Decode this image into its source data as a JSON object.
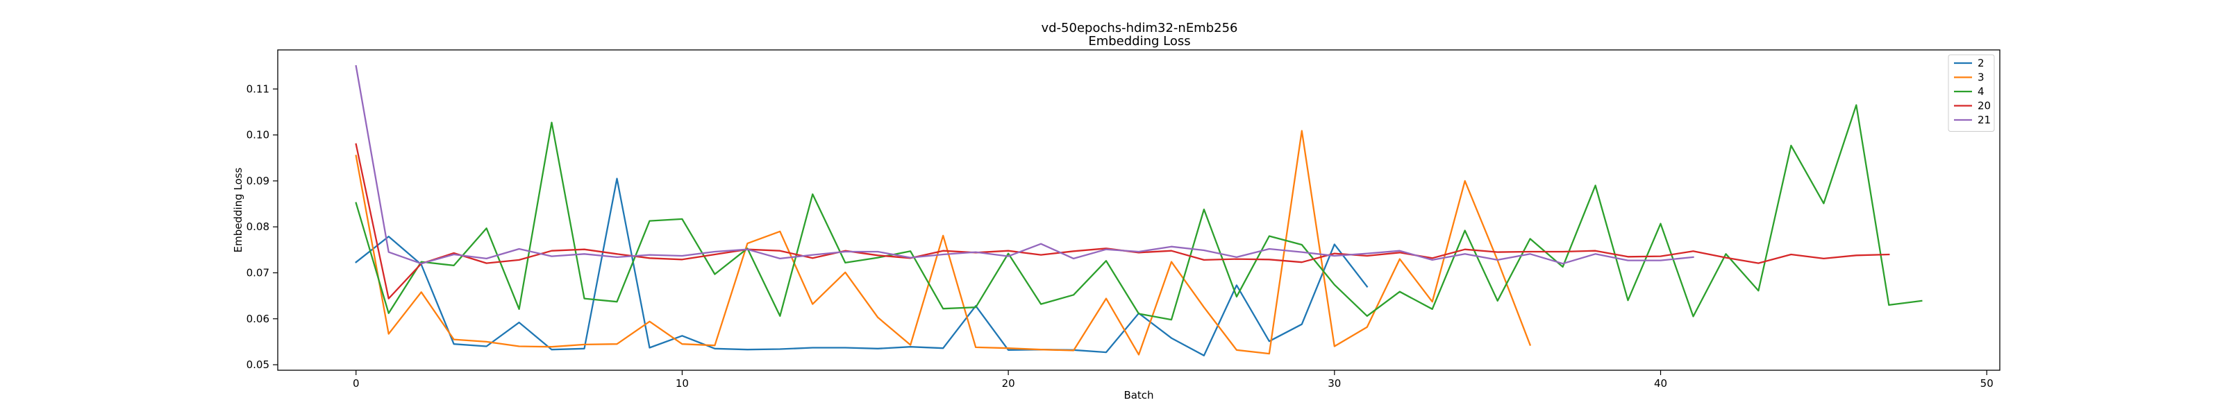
{
  "chart_data": {
    "type": "line",
    "title": "vd-50epochs-hdim32-nEmb256",
    "subtitle": "Embedding Loss",
    "xlabel": "Batch",
    "ylabel": "Embedding Loss",
    "xlim": [
      -2.4,
      50.4
    ],
    "ylim": [
      0.0488,
      0.1185
    ],
    "xticks": [
      0,
      10,
      20,
      30,
      40,
      50
    ],
    "yticks": [
      0.05,
      0.06,
      0.07,
      0.08,
      0.09,
      0.1,
      0.11
    ],
    "ytick_labels": [
      "0.05",
      "0.06",
      "0.07",
      "0.08",
      "0.09",
      "0.10",
      "0.11"
    ],
    "grid": false,
    "legend_position": "top-right",
    "series": [
      {
        "name": "2",
        "color": "#1f77b4",
        "x": [
          0,
          1,
          2,
          3,
          4,
          5,
          6,
          7,
          8,
          9,
          10,
          11,
          12,
          13,
          14,
          15,
          16,
          17,
          18,
          19,
          20,
          21,
          22,
          23,
          24,
          25,
          26,
          27,
          28,
          29,
          30,
          31
        ],
        "values": [
          0.0723,
          0.0779,
          0.0718,
          0.0545,
          0.054,
          0.0592,
          0.0533,
          0.0535,
          0.0905,
          0.0537,
          0.0563,
          0.0535,
          0.0533,
          0.0534,
          0.0537,
          0.0537,
          0.0535,
          0.0539,
          0.0536,
          0.0628,
          0.0532,
          0.0533,
          0.0532,
          0.0527,
          0.0612,
          0.0558,
          0.052,
          0.0673,
          0.0551,
          0.0588,
          0.0762,
          0.067
        ]
      },
      {
        "name": "3",
        "color": "#ff7f0e",
        "x": [
          0,
          1,
          2,
          3,
          4,
          5,
          6,
          7,
          8,
          9,
          10,
          11,
          12,
          13,
          14,
          15,
          16,
          17,
          18,
          19,
          20,
          21,
          22,
          23,
          24,
          25,
          26,
          27,
          28,
          29,
          30,
          31,
          32,
          33,
          34,
          35,
          36
        ],
        "values": [
          0.0955,
          0.0567,
          0.0658,
          0.0555,
          0.055,
          0.054,
          0.0539,
          0.0544,
          0.0545,
          0.0594,
          0.0545,
          0.0542,
          0.0764,
          0.079,
          0.0632,
          0.0701,
          0.0603,
          0.0543,
          0.0781,
          0.0538,
          0.0536,
          0.0533,
          0.0531,
          0.0644,
          0.0522,
          0.0724,
          0.0625,
          0.0532,
          0.0524,
          0.1009,
          0.054,
          0.0582,
          0.073,
          0.0637,
          0.09,
          0.0727,
          0.0543
        ]
      },
      {
        "name": "4",
        "color": "#2ca02c",
        "x": [
          0,
          1,
          2,
          3,
          4,
          5,
          6,
          7,
          8,
          9,
          10,
          11,
          12,
          13,
          14,
          15,
          16,
          17,
          18,
          19,
          20,
          21,
          22,
          23,
          24,
          25,
          26,
          27,
          28,
          29,
          30,
          31,
          32,
          33,
          34,
          35,
          36,
          37,
          38,
          39,
          40,
          41,
          42,
          43,
          44,
          45,
          46,
          47,
          48
        ],
        "values": [
          0.0852,
          0.0612,
          0.0724,
          0.0716,
          0.0797,
          0.0621,
          0.1027,
          0.0644,
          0.0637,
          0.0813,
          0.0817,
          0.0697,
          0.0753,
          0.0606,
          0.0871,
          0.0722,
          0.0733,
          0.0747,
          0.0622,
          0.0625,
          0.0742,
          0.0632,
          0.0652,
          0.0726,
          0.0611,
          0.0598,
          0.0838,
          0.0648,
          0.078,
          0.0761,
          0.0674,
          0.0606,
          0.0659,
          0.0621,
          0.0792,
          0.0639,
          0.0774,
          0.0713,
          0.089,
          0.064,
          0.0807,
          0.0605,
          0.0741,
          0.0661,
          0.0977,
          0.0851,
          0.1065,
          0.063,
          0.0639
        ]
      },
      {
        "name": "20",
        "color": "#d62728",
        "x": [
          0,
          1,
          2,
          3,
          4,
          5,
          6,
          7,
          8,
          9,
          10,
          11,
          12,
          13,
          14,
          15,
          16,
          17,
          18,
          19,
          20,
          21,
          22,
          23,
          24,
          25,
          26,
          27,
          28,
          29,
          30,
          31,
          32,
          33,
          34,
          35,
          36,
          37,
          38,
          39,
          40,
          41,
          42,
          43,
          44,
          45,
          46,
          47
        ],
        "values": [
          0.098,
          0.0644,
          0.072,
          0.0743,
          0.0721,
          0.0728,
          0.0748,
          0.0751,
          0.0741,
          0.0732,
          0.0729,
          0.074,
          0.0751,
          0.0748,
          0.0732,
          0.0748,
          0.0738,
          0.0732,
          0.0748,
          0.0744,
          0.0748,
          0.0739,
          0.0747,
          0.0753,
          0.0744,
          0.0748,
          0.0728,
          0.073,
          0.0729,
          0.0723,
          0.0742,
          0.0737,
          0.0744,
          0.0732,
          0.0751,
          0.0745,
          0.0746,
          0.0746,
          0.0748,
          0.0735,
          0.0736,
          0.0747,
          0.0733,
          0.0721,
          0.074,
          0.0731,
          0.0738,
          0.074
        ]
      },
      {
        "name": "21",
        "color": "#9467bd",
        "x": [
          0,
          1,
          2,
          3,
          4,
          5,
          6,
          7,
          8,
          9,
          10,
          11,
          12,
          13,
          14,
          15,
          16,
          17,
          18,
          19,
          20,
          21,
          22,
          23,
          24,
          25,
          26,
          27,
          28,
          29,
          30,
          31,
          32,
          33,
          34,
          35,
          36,
          37,
          38,
          39,
          40,
          41
        ],
        "values": [
          0.115,
          0.0745,
          0.072,
          0.074,
          0.0731,
          0.0752,
          0.0736,
          0.0741,
          0.0734,
          0.0739,
          0.0737,
          0.0746,
          0.0751,
          0.0731,
          0.0739,
          0.0746,
          0.0746,
          0.0733,
          0.074,
          0.0745,
          0.0736,
          0.0763,
          0.0731,
          0.0751,
          0.0746,
          0.0757,
          0.0749,
          0.0734,
          0.0752,
          0.0745,
          0.0737,
          0.0742,
          0.0748,
          0.0728,
          0.0741,
          0.0728,
          0.0741,
          0.072,
          0.0741,
          0.0727,
          0.0727,
          0.0734
        ]
      }
    ]
  }
}
